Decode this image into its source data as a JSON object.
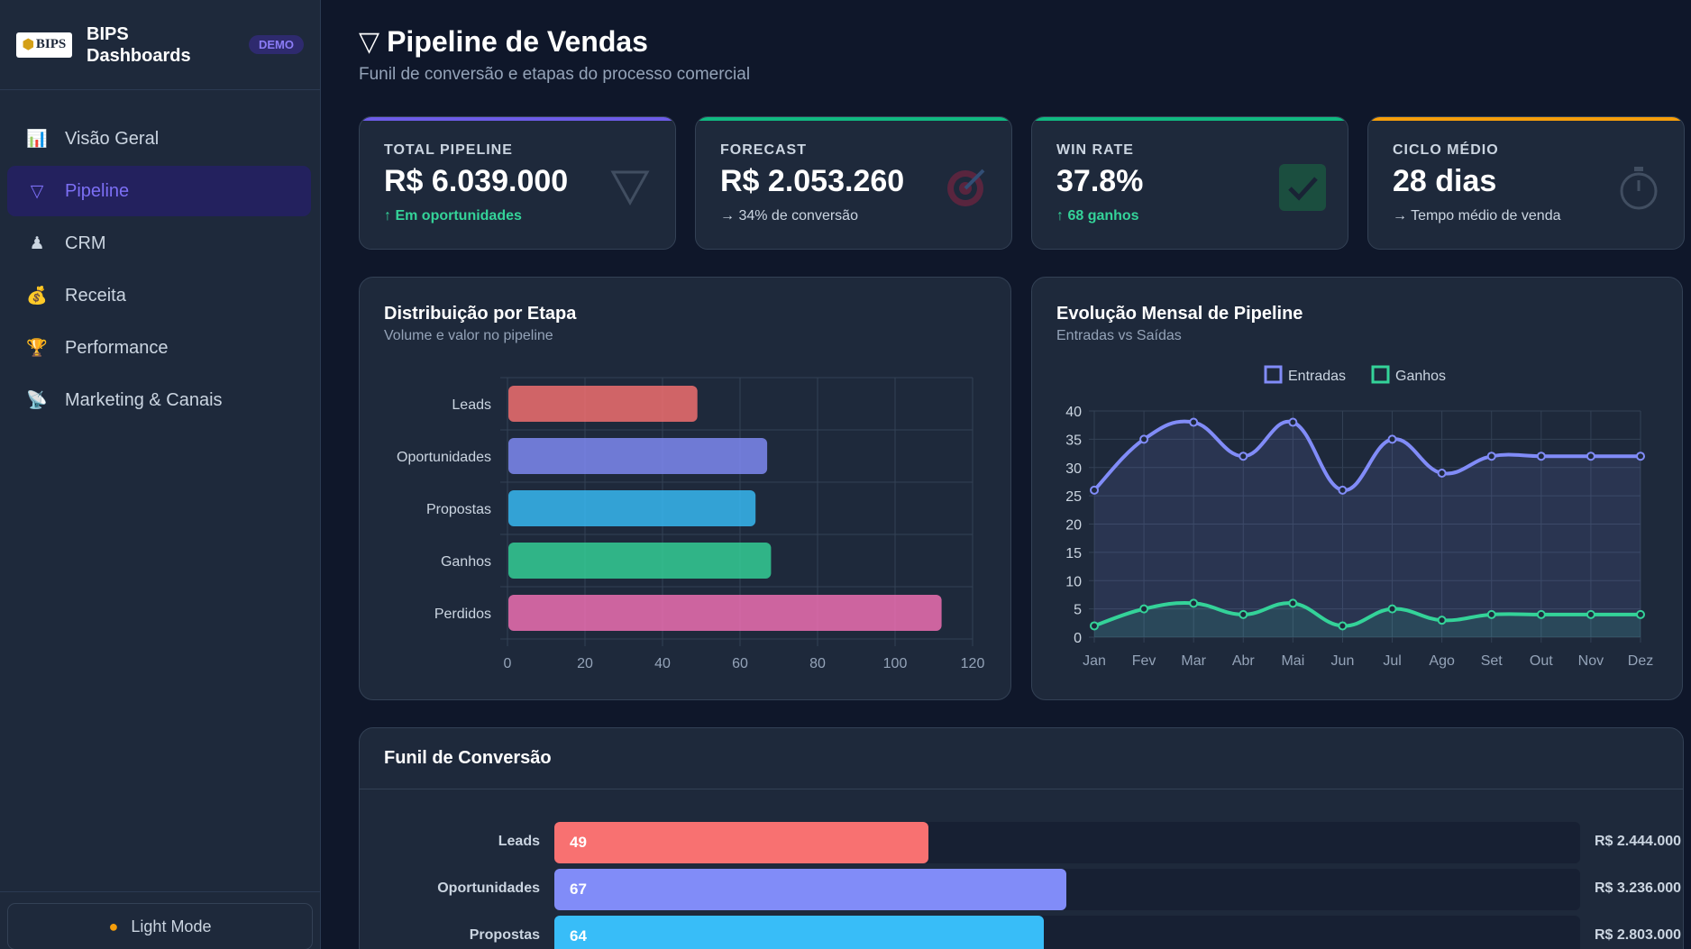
{
  "app": {
    "brand_logo_text": "BIPS",
    "brand_name": "BIPS Dashboards",
    "demo_badge": "DEMO"
  },
  "sidebar": {
    "items": [
      {
        "label": "Visão Geral",
        "icon": "bar-chart-icon"
      },
      {
        "label": "Pipeline",
        "icon": "funnel-icon",
        "active": true
      },
      {
        "label": "CRM",
        "icon": "person-icon"
      },
      {
        "label": "Receita",
        "icon": "money-bag-icon"
      },
      {
        "label": "Performance",
        "icon": "trophy-icon"
      },
      {
        "label": "Marketing & Canais",
        "icon": "satellite-icon"
      }
    ],
    "mode_button": "Light Mode"
  },
  "header": {
    "title": "Pipeline de Vendas",
    "subtitle": "Funil de conversão e etapas do processo comercial"
  },
  "kpis": [
    {
      "label": "TOTAL PIPELINE",
      "value": "R$ 6.039.000",
      "delta": "↑ Em oportunidades",
      "accent": "#6d5ce8",
      "icon": "funnel-icon"
    },
    {
      "label": "FORECAST",
      "value": "R$ 2.053.260",
      "delta": "→ 34% de conversão",
      "accent": "#10b981",
      "icon": "target-icon"
    },
    {
      "label": "WIN RATE",
      "value": "37.8%",
      "delta": "↑ 68 ganhos",
      "accent": "#10b981",
      "icon": "check-icon"
    },
    {
      "label": "CICLO MÉDIO",
      "value": "28 dias",
      "delta": "→ Tempo médio de venda",
      "accent": "#f59e0b",
      "icon": "stopwatch-icon"
    }
  ],
  "distribution": {
    "title": "Distribuição por Etapa",
    "subtitle": "Volume e valor no pipeline"
  },
  "evolution": {
    "title": "Evolução Mensal de Pipeline",
    "subtitle": "Entradas vs Saídas"
  },
  "funnel": {
    "title": "Funil de Conversão",
    "rows": [
      {
        "label": "Leads",
        "count": "49",
        "value": "R$ 2.444.000",
        "color": "#f87171",
        "share": 0.365
      },
      {
        "label": "Oportunidades",
        "count": "67",
        "value": "R$ 3.236.000",
        "color": "#818cf8",
        "share": 0.499
      },
      {
        "label": "Propostas",
        "count": "64",
        "value": "R$ 2.803.000",
        "color": "#38bdf8",
        "share": 0.477
      }
    ]
  },
  "chart_data": [
    {
      "type": "bar",
      "orientation": "horizontal",
      "categories": [
        "Leads",
        "Oportunidades",
        "Propostas",
        "Ganhos",
        "Perdidos"
      ],
      "values": [
        49,
        67,
        64,
        68,
        112
      ],
      "colors": [
        "#f87171",
        "#818cf8",
        "#38bdf8",
        "#34d399",
        "#f472b6"
      ],
      "xlim": [
        0,
        120
      ],
      "xticks": [
        0,
        20,
        40,
        60,
        80,
        100,
        120
      ],
      "grid": true
    },
    {
      "type": "line",
      "x": [
        "Jan",
        "Fev",
        "Mar",
        "Abr",
        "Mai",
        "Jun",
        "Jul",
        "Ago",
        "Set",
        "Out",
        "Nov",
        "Dez"
      ],
      "series": [
        {
          "name": "Entradas",
          "color": "#818cf8",
          "values": [
            26,
            35,
            38,
            32,
            38,
            26,
            35,
            29,
            32,
            32,
            32,
            32
          ]
        },
        {
          "name": "Ganhos",
          "color": "#34d399",
          "values": [
            2,
            5,
            6,
            4,
            6,
            2,
            5,
            3,
            4,
            4,
            4,
            4
          ]
        }
      ],
      "ylim": [
        0,
        40
      ],
      "yticks": [
        0,
        5,
        10,
        15,
        20,
        25,
        30,
        35,
        40
      ],
      "legend": "top-center",
      "grid": true
    }
  ]
}
